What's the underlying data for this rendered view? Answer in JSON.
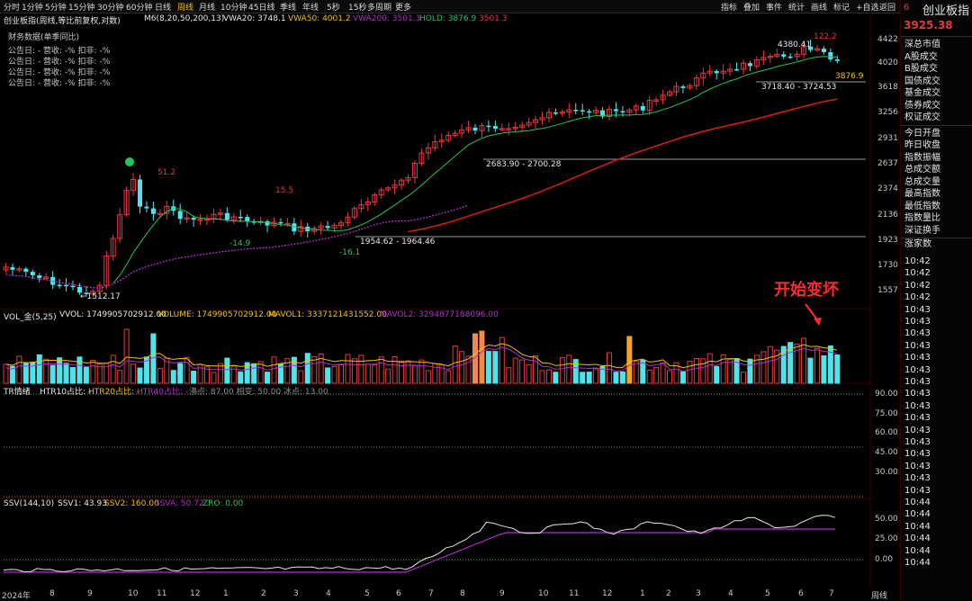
{
  "topbar": {
    "timeframes": [
      "分时",
      "1分钟",
      "5分钟",
      "15分钟",
      "30分钟",
      "60分钟",
      "日线",
      "周线",
      "月线",
      "10分钟",
      "45日线",
      "季线",
      "年线",
      "5秒",
      "15秒",
      "多周期",
      "更多"
    ],
    "active_index": 7,
    "tools": [
      "指标",
      "叠加",
      "事件",
      "统计",
      "画线",
      "标记",
      "+自选",
      "返回"
    ]
  },
  "right_panel": {
    "code": "6",
    "title": "创业板指",
    "price": "3925.38",
    "stats": [
      "深总市值",
      "A股成交",
      "B股成交",
      "国债成交",
      "基金成交",
      "债券成交",
      "权证成交",
      "今日开盘",
      "昨日收盘",
      "指数振幅",
      "总成交额",
      "总成交量",
      "最高指数",
      "最低指数",
      "指数量比",
      "深证换手",
      "涨家数"
    ],
    "times": [
      "10:42",
      "10:42",
      "10:42",
      "10:42",
      "10:43",
      "10:43",
      "10:43",
      "10:43",
      "10:43",
      "10:43",
      "10:43",
      "10:43",
      "10:43",
      "10:43",
      "10:43",
      "10:43",
      "10:43",
      "10:43",
      "10:43",
      "10:43",
      "10:44",
      "10:44",
      "10:44",
      "10:44",
      "10:44",
      "10:44"
    ],
    "period": "周线"
  },
  "main_header": {
    "title": "创业板指(周线,等比前复权,对数)",
    "ma": "M6(8,20,50,200,13)",
    "vwa20": "VWA20: 3748.1",
    "vwa50": "VWA50: 4001.2",
    "vwa200": "VWA200: 3501.3",
    "hold": "HOLD: 3876.9",
    "last": "3501.3"
  },
  "financial": {
    "title": "财务数据(单季同比)",
    "rows": [
      "公告日: -   营收: -%   扣非: -%",
      "公告日: -   营收: -%   扣非: -%",
      "公告日: -   营收: -%   扣非: -%",
      "公告日: -   营收: -%   扣非: -%"
    ]
  },
  "price_axis": [
    "4422",
    "4020",
    "3618",
    "3256",
    "2931",
    "2637",
    "2374",
    "2136",
    "1923",
    "1730",
    "1557"
  ],
  "price_annotations": [
    "51.2",
    "15.5",
    "-14.9",
    "-16.1",
    "1954.62 - 1964.46",
    "←1512.17",
    "2683.90 - 2700.28",
    "3718.40 - 3724.53",
    "4380.41",
    "122.2",
    "3876.9"
  ],
  "vol_header": {
    "name": "VOL_金(5,25)",
    "vvol": "VVOL: 1749905702912.00",
    "volume": "VOLUME: 1749905702912.00",
    "mavol1": "MAVOL1: 3337121431552.00",
    "mavol2": "MAVOL2: 3294877188096.00"
  },
  "tr_header": {
    "name": "TR情绪",
    "htr10": "HTR10占比: -",
    "htr20": "HTR20占比: -",
    "htr40": "HTR40占比: -",
    "rest": "沸点: 87.00  相变: 50.00  冰点: 13.00"
  },
  "tr_axis": [
    "90.00",
    "75.00",
    "60.00",
    "45.00",
    "30.00"
  ],
  "ssv_header": {
    "name": "SSV(144,10)",
    "ssv1": "SSV1: 43.93",
    "ssv2": "SSV2: 160.00",
    "ssva": "SSVA: 50.72",
    "zro": "ZRO: 0.00"
  },
  "ssv_axis": [
    "50.00",
    "25.00",
    "0.00"
  ],
  "x_axis": [
    "2024年",
    "8",
    "9",
    "10",
    "11",
    "12",
    "1",
    "2",
    "3",
    "4",
    "5",
    "6",
    "7",
    "8",
    "9",
    "10",
    "11",
    "12",
    "1",
    "2",
    "3",
    "4",
    "5",
    "6",
    "7"
  ],
  "annotation": "开始变坏",
  "colors": {
    "up": "#e8383d",
    "down": "#4fe4ec",
    "ma_green": "#22c55e",
    "ma_purple": "#b030c8",
    "vwa_gold": "#f0c000",
    "bg": "#000000"
  }
}
